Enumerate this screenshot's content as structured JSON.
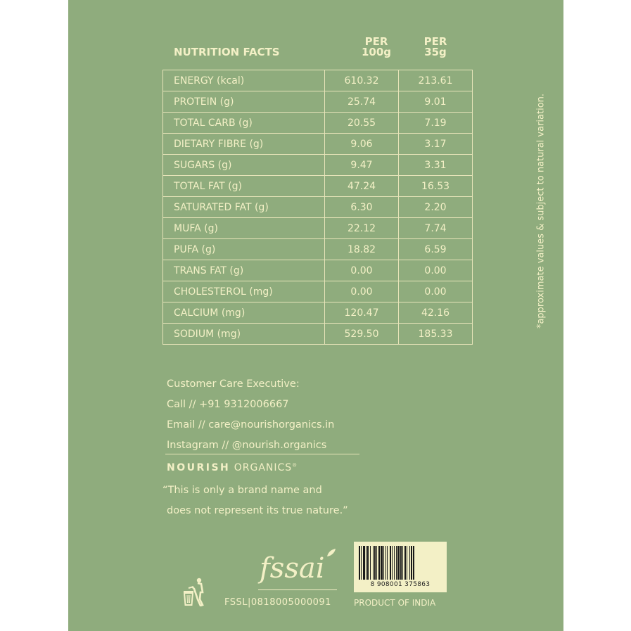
{
  "header": {
    "title": "NUTRITION FACTS",
    "col1_line1": "PER",
    "col1_line2": "100g",
    "col2_line1": "PER",
    "col2_line2": "35g"
  },
  "rows": [
    {
      "label": "ENERGY (kcal)",
      "per100": "610.32",
      "per35": "213.61"
    },
    {
      "label": "PROTEIN (g)",
      "per100": "25.74",
      "per35": "9.01"
    },
    {
      "label": "TOTAL CARB (g)",
      "per100": "20.55",
      "per35": "7.19"
    },
    {
      "label": "DIETARY FIBRE (g)",
      "per100": "9.06",
      "per35": "3.17"
    },
    {
      "label": "SUGARS (g)",
      "per100": "9.47",
      "per35": "3.31"
    },
    {
      "label": "TOTAL FAT (g)",
      "per100": "47.24",
      "per35": "16.53"
    },
    {
      "label": "SATURATED FAT (g)",
      "per100": "6.30",
      "per35": "2.20"
    },
    {
      "label": "MUFA (g)",
      "per100": "22.12",
      "per35": "7.74"
    },
    {
      "label": "PUFA (g)",
      "per100": "18.82",
      "per35": "6.59"
    },
    {
      "label": "TRANS FAT (g)",
      "per100": "0.00",
      "per35": "0.00"
    },
    {
      "label": "CHOLESTEROL (mg)",
      "per100": "0.00",
      "per35": "0.00"
    },
    {
      "label": "CALCIUM (mg)",
      "per100": "120.47",
      "per35": "42.16"
    },
    {
      "label": "SODIUM (mg)",
      "per100": "529.50",
      "per35": "185.33"
    }
  ],
  "care": {
    "heading": "Customer Care Executive:",
    "call": "Call // +91 9312006667",
    "email": "Email // care@nourishorganics.in",
    "instagram": "Instagram // @nourish.organics"
  },
  "brand": {
    "name_bold": "NOURISH",
    "name_light": "ORGANICS",
    "mark": "®"
  },
  "disclaimer": {
    "line1": "“This is only a brand name and",
    "line2": "does not represent its true nature.”"
  },
  "side_note": "*approximate values & subject to natural variation.",
  "fssai": {
    "logo_text": "fssai",
    "license": "FSSL|0818005000091"
  },
  "barcode": {
    "number": "8 908001 375863"
  },
  "origin": "PRODUCT OF INDIA",
  "colors": {
    "background": "#8fac7d",
    "text": "#f3f0c6"
  },
  "icons": {
    "bin": "dispose-in-bin-icon"
  }
}
